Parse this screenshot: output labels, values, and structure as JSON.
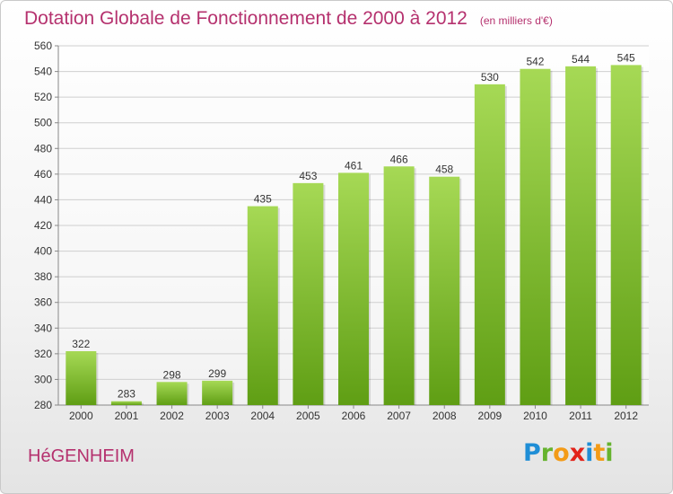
{
  "title": "Dotation Globale de Fonctionnement de 2000 à 2012",
  "subtitle": "(en milliers d'€)",
  "commune": "HéGENHEIM",
  "logo": {
    "p": "P",
    "r": "r",
    "o": "o",
    "x": "x",
    "i1": "i",
    "t": "t",
    "i2": "i"
  },
  "colors": {
    "title": "#b5316e",
    "bar_top": "#a6d955",
    "bar_bottom": "#5f9e14"
  },
  "chart_data": {
    "type": "bar",
    "categories": [
      "2000",
      "2001",
      "2002",
      "2003",
      "2004",
      "2005",
      "2006",
      "2007",
      "2008",
      "2009",
      "2010",
      "2011",
      "2012"
    ],
    "values": [
      322,
      283,
      298,
      299,
      435,
      453,
      461,
      466,
      458,
      530,
      542,
      544,
      545
    ],
    "ylim": [
      280,
      560
    ],
    "yticks": [
      280,
      300,
      320,
      340,
      360,
      380,
      400,
      420,
      440,
      460,
      480,
      500,
      520,
      540,
      560
    ],
    "grid": true,
    "title": "Dotation Globale de Fonctionnement de 2000 à 2012",
    "subtitle": "(en milliers d'€)"
  }
}
